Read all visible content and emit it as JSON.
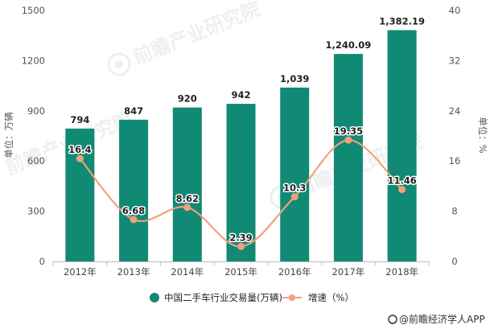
{
  "chart_data": {
    "type": "bar",
    "categories": [
      "2012年",
      "2013年",
      "2014年",
      "2015年",
      "2016年",
      "2017年",
      "2018年"
    ],
    "series": [
      {
        "name": "中国二手车行业交易量(万辆)",
        "kind": "bar",
        "axis": "left",
        "values": [
          794,
          847,
          920,
          942,
          1039,
          1240.09,
          1382.19
        ],
        "labels": [
          "794",
          "847",
          "920",
          "942",
          "1,039",
          "1,240.09",
          "1,382.19"
        ],
        "color": "#108a74"
      },
      {
        "name": "增速（%）",
        "kind": "line",
        "axis": "right",
        "values": [
          16.4,
          6.68,
          8.62,
          2.39,
          10.3,
          19.35,
          11.46
        ],
        "labels": [
          "16.4",
          "6.68",
          "8.62",
          "2.39",
          "10.3",
          "19.35",
          "11.46"
        ],
        "color": "#f4a07c"
      }
    ],
    "y_left": {
      "label": "单位：万辆",
      "ylim": [
        0,
        1500
      ],
      "ticks": [
        0,
        300,
        600,
        900,
        1200,
        1500
      ],
      "tick_labels": [
        "0",
        "300",
        "600",
        "900",
        "1200",
        "1500"
      ]
    },
    "y_right": {
      "label": "单位：%",
      "ylim": [
        0,
        40
      ],
      "ticks": [
        0,
        8,
        16,
        24,
        32,
        40
      ],
      "tick_labels": [
        "0",
        "8",
        "16",
        "24",
        "32",
        "40"
      ]
    },
    "legend_position": "bottom-center",
    "grid": false
  },
  "watermark": "前瞻产业研究院",
  "source": "@前瞻经济学人APP"
}
